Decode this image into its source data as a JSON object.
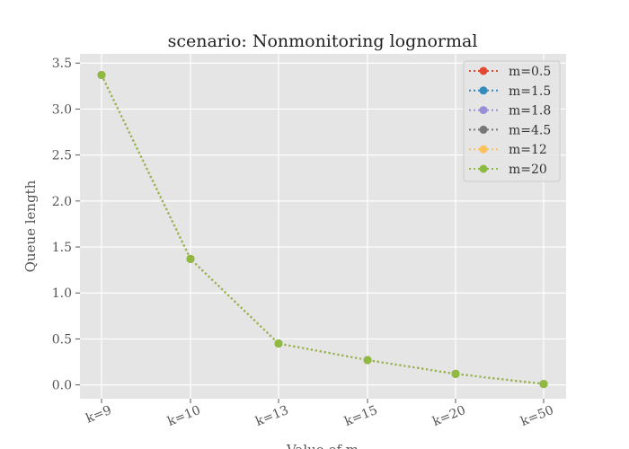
{
  "chart_data": {
    "type": "line",
    "title": "scenario: Nonmonitoring lognormal",
    "xlabel": "Value of m",
    "ylabel": "Queue length",
    "categories": [
      "k=9",
      "k=10",
      "k=13",
      "k=15",
      "k=20",
      "k=50"
    ],
    "ylim": [
      -0.15,
      3.6
    ],
    "yticks": [
      "0.0",
      "0.5",
      "1.0",
      "1.5",
      "2.0",
      "2.5",
      "3.0",
      "3.5"
    ],
    "grid": true,
    "legend": "top-right",
    "series": [
      {
        "name": "m=0.5",
        "color": "#E24A33",
        "values": [
          3.37,
          1.37,
          0.45,
          0.27,
          0.12,
          0.01
        ]
      },
      {
        "name": "m=1.5",
        "color": "#348ABD",
        "values": [
          3.37,
          1.37,
          0.45,
          0.27,
          0.12,
          0.01
        ]
      },
      {
        "name": "m=1.8",
        "color": "#988ED5",
        "values": [
          3.37,
          1.37,
          0.45,
          0.27,
          0.12,
          0.01
        ]
      },
      {
        "name": "m=4.5",
        "color": "#777777",
        "values": [
          3.37,
          1.37,
          0.45,
          0.27,
          0.12,
          0.01
        ]
      },
      {
        "name": "m=12",
        "color": "#FBC15E",
        "values": [
          3.37,
          1.37,
          0.45,
          0.27,
          0.12,
          0.01
        ]
      },
      {
        "name": "m=20",
        "color": "#8EBA42",
        "values": [
          3.37,
          1.37,
          0.45,
          0.27,
          0.12,
          0.01
        ]
      }
    ]
  }
}
